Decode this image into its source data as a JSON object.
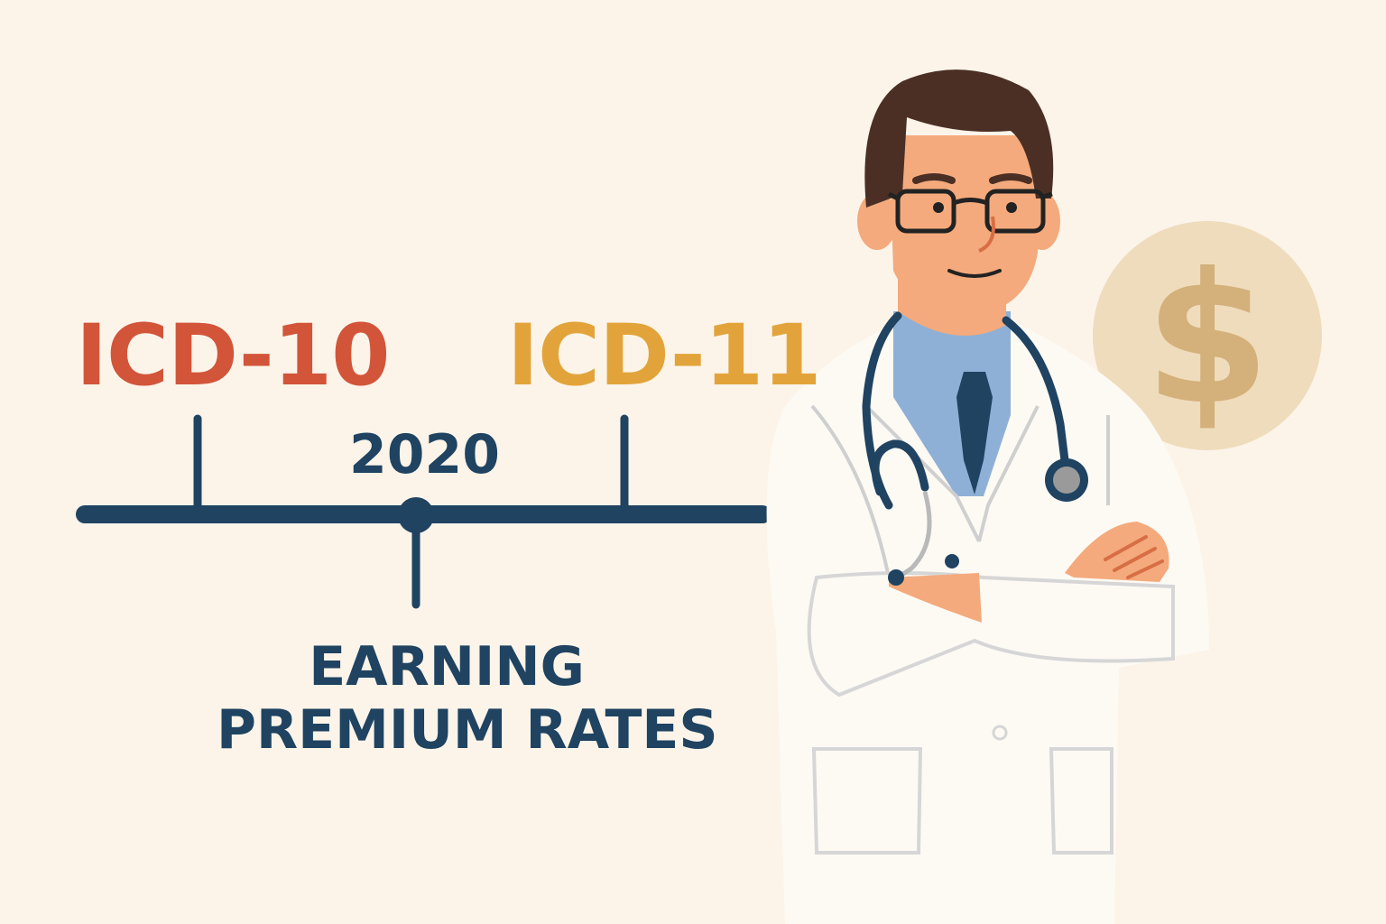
{
  "timeline": {
    "start_label": "ICD-10",
    "end_label": "ICD-11",
    "milestone_year": "2020",
    "milestone_caption_line1": "EARNING",
    "milestone_caption_line2": "PREMIUM RATES"
  },
  "colors": {
    "background": "#fcf4e9",
    "icd10": "#d2553a",
    "icd11": "#e2a43a",
    "timeline": "#1f4361",
    "coin": "#efdcbc",
    "dollar": "#d4b07a"
  },
  "icons": {
    "coin": "dollar-coin-icon",
    "figure": "doctor-illustration"
  }
}
